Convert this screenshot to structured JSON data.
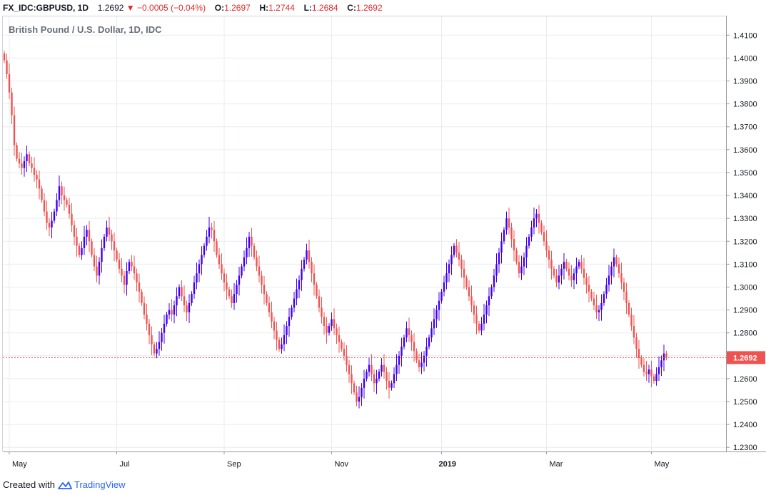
{
  "header": {
    "symbol": "FX_IDC:GBPUSD, 1D",
    "last": "1.2692",
    "change": "−0.0005 (−0.04%)",
    "o_label": "O:",
    "o_value": "1.2697",
    "h_label": "H:",
    "h_value": "1.2744",
    "l_label": "L:",
    "l_value": "1.2684",
    "c_label": "C:",
    "c_value": "1.2692"
  },
  "colors": {
    "up": "#3f00f0",
    "down": "#ef5350",
    "header_values": "#e22b2b",
    "price_tag": "#ef5350",
    "grid": "#e8ecf1"
  },
  "footer": {
    "created_with": "Created with",
    "brand": "TradingView"
  },
  "chart_data": {
    "type": "candlestick",
    "title": "British Pound / U.S. Dollar, 1D, IDC",
    "ylim": [
      1.2282,
      1.4185
    ],
    "y_ticks": [
      "1.2300",
      "1.2400",
      "1.2500",
      "1.2600",
      "1.2700",
      "1.2800",
      "1.2900",
      "1.3000",
      "1.3100",
      "1.3200",
      "1.3300",
      "1.3400",
      "1.3500",
      "1.3600",
      "1.3700",
      "1.3800",
      "1.3900",
      "1.4000",
      "1.4100"
    ],
    "x_ticks": [
      {
        "label": "May",
        "index": 2
      },
      {
        "label": "Jul",
        "index": 45
      },
      {
        "label": "Sep",
        "index": 88
      },
      {
        "label": "Nov",
        "index": 131
      },
      {
        "label": "2019",
        "index": 175,
        "bold": true
      },
      {
        "label": "Mar",
        "index": 217
      },
      {
        "label": "May",
        "index": 259
      }
    ],
    "last_price": "1.2692",
    "closes": [
      1.399,
      1.393,
      1.385,
      1.375,
      1.362,
      1.356,
      1.354,
      1.352,
      1.355,
      1.358,
      1.354,
      1.352,
      1.349,
      1.347,
      1.343,
      1.338,
      1.333,
      1.328,
      1.326,
      1.329,
      1.333,
      1.338,
      1.344,
      1.34,
      1.338,
      1.336,
      1.332,
      1.327,
      1.322,
      1.318,
      1.314,
      1.317,
      1.322,
      1.325,
      1.32,
      1.314,
      1.309,
      1.305,
      1.311,
      1.317,
      1.322,
      1.326,
      1.323,
      1.32,
      1.316,
      1.312,
      1.308,
      1.305,
      1.301,
      1.307,
      1.311,
      1.309,
      1.306,
      1.302,
      1.298,
      1.293,
      1.288,
      1.284,
      1.279,
      1.275,
      1.271,
      1.273,
      1.276,
      1.28,
      1.284,
      1.288,
      1.29,
      1.288,
      1.292,
      1.296,
      1.3,
      1.296,
      1.292,
      1.289,
      1.293,
      1.297,
      1.302,
      1.306,
      1.31,
      1.314,
      1.318,
      1.322,
      1.326,
      1.325,
      1.32,
      1.314,
      1.31,
      1.306,
      1.302,
      1.299,
      1.296,
      1.293,
      1.297,
      1.301,
      1.305,
      1.309,
      1.313,
      1.317,
      1.322,
      1.318,
      1.313,
      1.309,
      1.305,
      1.301,
      1.297,
      1.293,
      1.289,
      1.285,
      1.281,
      1.277,
      1.273,
      1.275,
      1.279,
      1.283,
      1.287,
      1.291,
      1.295,
      1.299,
      1.303,
      1.308,
      1.312,
      1.316,
      1.311,
      1.306,
      1.301,
      1.296,
      1.291,
      1.287,
      1.283,
      1.28,
      1.283,
      1.286,
      1.282,
      1.279,
      1.276,
      1.273,
      1.27,
      1.266,
      1.262,
      1.258,
      1.254,
      1.25,
      1.252,
      1.256,
      1.26,
      1.263,
      1.266,
      1.262,
      1.258,
      1.26,
      1.263,
      1.266,
      1.263,
      1.259,
      1.256,
      1.258,
      1.262,
      1.266,
      1.27,
      1.274,
      1.278,
      1.282,
      1.279,
      1.276,
      1.272,
      1.268,
      1.265,
      1.267,
      1.27,
      1.274,
      1.278,
      1.282,
      1.286,
      1.29,
      1.294,
      1.298,
      1.302,
      1.306,
      1.31,
      1.314,
      1.318,
      1.315,
      1.312,
      1.308,
      1.304,
      1.3,
      1.296,
      1.292,
      1.288,
      1.284,
      1.281,
      1.284,
      1.288,
      1.292,
      1.296,
      1.3,
      1.305,
      1.31,
      1.315,
      1.32,
      1.325,
      1.33,
      1.326,
      1.321,
      1.316,
      1.311,
      1.306,
      1.309,
      1.313,
      1.318,
      1.322,
      1.326,
      1.33,
      1.332,
      1.328,
      1.324,
      1.32,
      1.316,
      1.312,
      1.308,
      1.305,
      1.302,
      1.305,
      1.308,
      1.311,
      1.308,
      1.305,
      1.303,
      1.306,
      1.309,
      1.311,
      1.308,
      1.304,
      1.301,
      1.298,
      1.295,
      1.292,
      1.289,
      1.29,
      1.293,
      1.297,
      1.301,
      1.305,
      1.309,
      1.313,
      1.31,
      1.306,
      1.302,
      1.298,
      1.293,
      1.288,
      1.283,
      1.278,
      1.273,
      1.269,
      1.266,
      1.263,
      1.262,
      1.264,
      1.261,
      1.259,
      1.262,
      1.265,
      1.268,
      1.271,
      1.2692
    ]
  }
}
